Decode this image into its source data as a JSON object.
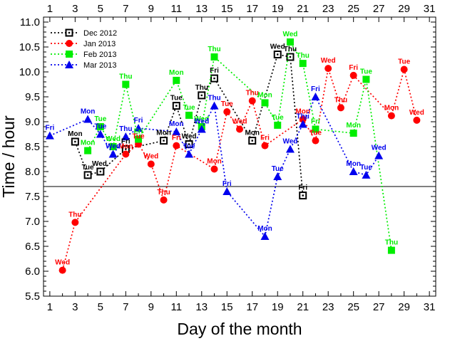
{
  "chart_data": {
    "type": "scatter",
    "xlabel": "Day of the month",
    "ylabel": "Time / hour",
    "xlim": [
      0.5,
      31.5
    ],
    "ylim": [
      5.5,
      11.1
    ],
    "x_ticks": [
      1,
      3,
      5,
      7,
      9,
      11,
      13,
      15,
      17,
      19,
      21,
      23,
      25,
      27,
      29,
      31
    ],
    "y_ticks": [
      5.5,
      6.0,
      6.5,
      7.0,
      7.5,
      8.0,
      8.5,
      9.0,
      9.5,
      10.0,
      10.5,
      11.0
    ],
    "y_tick_labels": [
      "5.5",
      "6.0",
      "6.5",
      "7.0",
      "7.5",
      "8.0",
      "8.5",
      "9.0",
      "9.5",
      "10.0",
      "10.5",
      "11.0"
    ],
    "x_minor_ticks": true,
    "grid": false,
    "legend_position": "top-left",
    "reference_line": {
      "y": 7.7
    },
    "series": [
      {
        "name": "Dec 2012",
        "color": "#000000",
        "marker": "open-square",
        "points": [
          {
            "x": 3,
            "y": 8.6,
            "label": "Mon"
          },
          {
            "x": 4,
            "y": 7.93,
            "label": "Tue"
          },
          {
            "x": 5,
            "y": 8.0,
            "label": "Wed."
          },
          {
            "x": 7,
            "y": 8.45,
            "label": "Fri"
          },
          {
            "x": 10,
            "y": 8.62,
            "label": "Mon"
          },
          {
            "x": 11,
            "y": 9.32,
            "label": "Tue"
          },
          {
            "x": 12,
            "y": 8.55,
            "label": "Wed"
          },
          {
            "x": 13,
            "y": 9.53,
            "label": "Thu"
          },
          {
            "x": 14,
            "y": 9.87,
            "label": "Fri"
          },
          {
            "x": 17,
            "y": 8.62,
            "label": "Mon"
          },
          {
            "x": 19,
            "y": 10.35,
            "label": "Wed"
          },
          {
            "x": 20,
            "y": 10.3,
            "label": "Thu"
          },
          {
            "x": 21,
            "y": 7.52,
            "label": "Fri"
          }
        ]
      },
      {
        "name": "Jan 2013",
        "color": "#ff0000",
        "marker": "circle",
        "points": [
          {
            "x": 2,
            "y": 6.02,
            "label": "Wed"
          },
          {
            "x": 3,
            "y": 6.98,
            "label": "Thu"
          },
          {
            "x": 7,
            "y": 8.35,
            "label": "Mon"
          },
          {
            "x": 8,
            "y": 8.55,
            "label": "Tue"
          },
          {
            "x": 9,
            "y": 8.15,
            "label": "Wed"
          },
          {
            "x": 10,
            "y": 7.43,
            "label": "Thu"
          },
          {
            "x": 11,
            "y": 8.52,
            "label": "Fri"
          },
          {
            "x": 14,
            "y": 8.05,
            "label": "Mon"
          },
          {
            "x": 15,
            "y": 9.2,
            "label": "Tue"
          },
          {
            "x": 16,
            "y": 8.85,
            "label": "Wed"
          },
          {
            "x": 17,
            "y": 9.42,
            "label": "Thu"
          },
          {
            "x": 18,
            "y": 8.52,
            "label": "Fri"
          },
          {
            "x": 21,
            "y": 9.05,
            "label": "Mon"
          },
          {
            "x": 22,
            "y": 8.62,
            "label": "Tue"
          },
          {
            "x": 23,
            "y": 10.07,
            "label": "Wed"
          },
          {
            "x": 24,
            "y": 9.28,
            "label": "Thu"
          },
          {
            "x": 25,
            "y": 9.93,
            "label": "Fri"
          },
          {
            "x": 28,
            "y": 9.12,
            "label": "Mon"
          },
          {
            "x": 29,
            "y": 10.05,
            "label": "Tue"
          },
          {
            "x": 30,
            "y": 9.03,
            "label": "Wed"
          }
        ]
      },
      {
        "name": "Feb 2013",
        "color": "#00ee00",
        "marker": "square",
        "points": [
          {
            "x": 4,
            "y": 8.42,
            "label": "Mon"
          },
          {
            "x": 5,
            "y": 8.9,
            "label": "Tue"
          },
          {
            "x": 6,
            "y": 8.5,
            "label": "Wed"
          },
          {
            "x": 7,
            "y": 9.75,
            "label": "Thu"
          },
          {
            "x": 8,
            "y": 8.65,
            "label": "Fri"
          },
          {
            "x": 11,
            "y": 9.83,
            "label": "Mon"
          },
          {
            "x": 12,
            "y": 9.13,
            "label": "Tue"
          },
          {
            "x": 13,
            "y": 8.9,
            "label": "Wed"
          },
          {
            "x": 14,
            "y": 10.3,
            "label": "Thu"
          },
          {
            "x": 18,
            "y": 9.38,
            "label": "Mon"
          },
          {
            "x": 19,
            "y": 8.93,
            "label": "Tue"
          },
          {
            "x": 20,
            "y": 10.6,
            "label": "Wed"
          },
          {
            "x": 21,
            "y": 10.17,
            "label": "Thu"
          },
          {
            "x": 22,
            "y": 8.85,
            "label": "Fri"
          },
          {
            "x": 25,
            "y": 8.77,
            "label": "Mon"
          },
          {
            "x": 26,
            "y": 9.85,
            "label": "Tue"
          },
          {
            "x": 28,
            "y": 6.42,
            "label": "Thu"
          }
        ]
      },
      {
        "name": "Mar 2013",
        "color": "#0000ee",
        "marker": "triangle",
        "points": [
          {
            "x": 1,
            "y": 8.72,
            "label": "Fri"
          },
          {
            "x": 4,
            "y": 9.05,
            "label": "Mon"
          },
          {
            "x": 5,
            "y": 8.75,
            "label": "Tue"
          },
          {
            "x": 6,
            "y": 8.35,
            "label": "Wed"
          },
          {
            "x": 7,
            "y": 8.7,
            "label": "Thu"
          },
          {
            "x": 8,
            "y": 8.87,
            "label": "Fri"
          },
          {
            "x": 11,
            "y": 8.8,
            "label": "Mon"
          },
          {
            "x": 12,
            "y": 8.35,
            "label": "Tue"
          },
          {
            "x": 13,
            "y": 8.85,
            "label": "Wed"
          },
          {
            "x": 14,
            "y": 9.32,
            "label": "Thu"
          },
          {
            "x": 15,
            "y": 7.6,
            "label": "Fri"
          },
          {
            "x": 18,
            "y": 6.7,
            "label": "Mon"
          },
          {
            "x": 19,
            "y": 7.9,
            "label": "Tue"
          },
          {
            "x": 20,
            "y": 8.45,
            "label": "Wed"
          },
          {
            "x": 21,
            "y": 8.95,
            "label": "Thu"
          },
          {
            "x": 22,
            "y": 9.5,
            "label": "Fri"
          },
          {
            "x": 25,
            "y": 8.0,
            "label": "Mon"
          },
          {
            "x": 26,
            "y": 7.93,
            "label": "Tue"
          },
          {
            "x": 27,
            "y": 8.32,
            "label": "Wed"
          }
        ]
      }
    ]
  }
}
